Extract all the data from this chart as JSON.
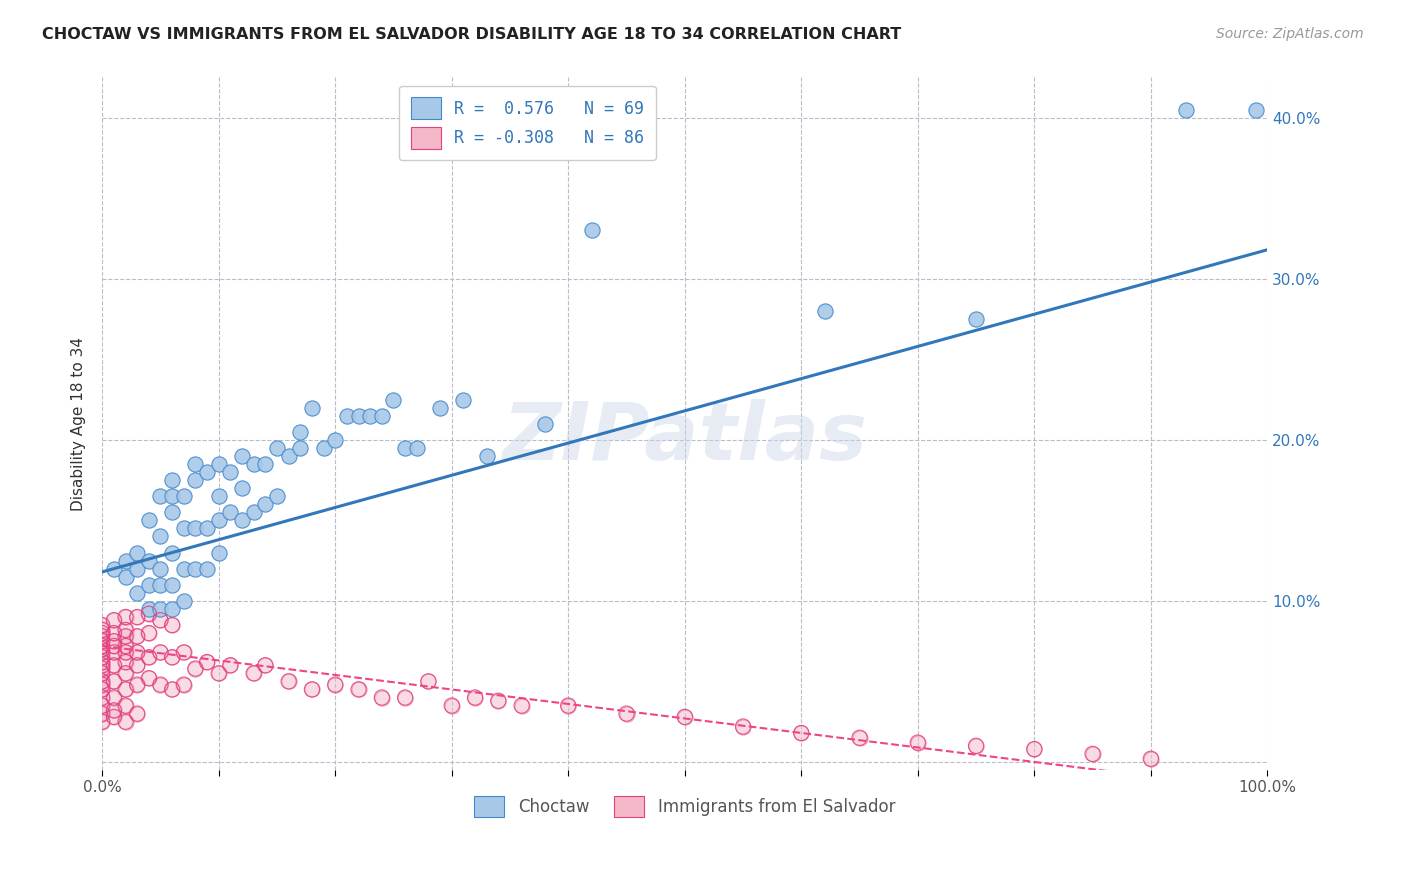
{
  "title": "CHOCTAW VS IMMIGRANTS FROM EL SALVADOR DISABILITY AGE 18 TO 34 CORRELATION CHART",
  "source": "Source: ZipAtlas.com",
  "ylabel": "Disability Age 18 to 34",
  "xlim": [
    0,
    1.0
  ],
  "ylim": [
    -0.005,
    0.425
  ],
  "ytick_positions": [
    0.0,
    0.1,
    0.2,
    0.3,
    0.4
  ],
  "yticklabels_right": [
    "",
    "10.0%",
    "20.0%",
    "30.0%",
    "40.0%"
  ],
  "blue_R": 0.576,
  "blue_N": 69,
  "pink_R": -0.308,
  "pink_N": 86,
  "blue_color": "#a8c8e8",
  "pink_color": "#f4b8c8",
  "blue_edge_color": "#4488cc",
  "pink_edge_color": "#e04080",
  "blue_line_color": "#3377bb",
  "pink_line_color": "#ee4488",
  "watermark": "ZIPatlas",
  "legend_blue_label": "Choctaw",
  "legend_pink_label": "Immigrants from El Salvador",
  "blue_trend_y_start": 0.118,
  "blue_trend_y_end": 0.318,
  "pink_trend_y_start": 0.072,
  "pink_trend_y_end": -0.018,
  "blue_scatter_x": [
    0.01,
    0.02,
    0.02,
    0.03,
    0.03,
    0.03,
    0.04,
    0.04,
    0.04,
    0.04,
    0.05,
    0.05,
    0.05,
    0.05,
    0.05,
    0.06,
    0.06,
    0.06,
    0.06,
    0.06,
    0.06,
    0.07,
    0.07,
    0.07,
    0.07,
    0.08,
    0.08,
    0.08,
    0.08,
    0.09,
    0.09,
    0.09,
    0.1,
    0.1,
    0.1,
    0.1,
    0.11,
    0.11,
    0.12,
    0.12,
    0.12,
    0.13,
    0.13,
    0.14,
    0.14,
    0.15,
    0.15,
    0.16,
    0.17,
    0.17,
    0.18,
    0.19,
    0.2,
    0.21,
    0.22,
    0.23,
    0.24,
    0.25,
    0.26,
    0.27,
    0.29,
    0.31,
    0.33,
    0.38,
    0.42,
    0.62,
    0.75,
    0.93,
    0.99
  ],
  "blue_scatter_y": [
    0.12,
    0.115,
    0.125,
    0.105,
    0.12,
    0.13,
    0.095,
    0.11,
    0.125,
    0.15,
    0.095,
    0.11,
    0.12,
    0.14,
    0.165,
    0.095,
    0.11,
    0.13,
    0.155,
    0.165,
    0.175,
    0.1,
    0.12,
    0.145,
    0.165,
    0.12,
    0.145,
    0.175,
    0.185,
    0.12,
    0.145,
    0.18,
    0.13,
    0.15,
    0.165,
    0.185,
    0.155,
    0.18,
    0.15,
    0.17,
    0.19,
    0.155,
    0.185,
    0.16,
    0.185,
    0.165,
    0.195,
    0.19,
    0.195,
    0.205,
    0.22,
    0.195,
    0.2,
    0.215,
    0.215,
    0.215,
    0.215,
    0.225,
    0.195,
    0.195,
    0.22,
    0.225,
    0.19,
    0.21,
    0.33,
    0.28,
    0.275,
    0.405,
    0.405
  ],
  "pink_scatter_x": [
    0.0,
    0.0,
    0.0,
    0.0,
    0.0,
    0.0,
    0.0,
    0.0,
    0.0,
    0.0,
    0.0,
    0.0,
    0.0,
    0.0,
    0.0,
    0.0,
    0.0,
    0.0,
    0.0,
    0.0,
    0.01,
    0.01,
    0.01,
    0.01,
    0.01,
    0.01,
    0.01,
    0.01,
    0.01,
    0.01,
    0.02,
    0.02,
    0.02,
    0.02,
    0.02,
    0.02,
    0.02,
    0.02,
    0.02,
    0.02,
    0.03,
    0.03,
    0.03,
    0.03,
    0.03,
    0.03,
    0.04,
    0.04,
    0.04,
    0.04,
    0.05,
    0.05,
    0.05,
    0.06,
    0.06,
    0.06,
    0.07,
    0.07,
    0.08,
    0.09,
    0.1,
    0.11,
    0.13,
    0.14,
    0.16,
    0.18,
    0.2,
    0.22,
    0.24,
    0.26,
    0.28,
    0.3,
    0.32,
    0.34,
    0.36,
    0.4,
    0.45,
    0.5,
    0.55,
    0.6,
    0.65,
    0.7,
    0.75,
    0.8,
    0.85,
    0.9
  ],
  "pink_scatter_y": [
    0.025,
    0.03,
    0.035,
    0.04,
    0.045,
    0.048,
    0.05,
    0.055,
    0.058,
    0.06,
    0.062,
    0.065,
    0.068,
    0.07,
    0.072,
    0.075,
    0.078,
    0.08,
    0.082,
    0.085,
    0.028,
    0.032,
    0.04,
    0.05,
    0.06,
    0.068,
    0.072,
    0.075,
    0.08,
    0.088,
    0.025,
    0.035,
    0.045,
    0.055,
    0.062,
    0.068,
    0.072,
    0.078,
    0.082,
    0.09,
    0.03,
    0.048,
    0.06,
    0.068,
    0.078,
    0.09,
    0.052,
    0.065,
    0.08,
    0.092,
    0.048,
    0.068,
    0.088,
    0.045,
    0.065,
    0.085,
    0.048,
    0.068,
    0.058,
    0.062,
    0.055,
    0.06,
    0.055,
    0.06,
    0.05,
    0.045,
    0.048,
    0.045,
    0.04,
    0.04,
    0.05,
    0.035,
    0.04,
    0.038,
    0.035,
    0.035,
    0.03,
    0.028,
    0.022,
    0.018,
    0.015,
    0.012,
    0.01,
    0.008,
    0.005,
    0.002
  ]
}
